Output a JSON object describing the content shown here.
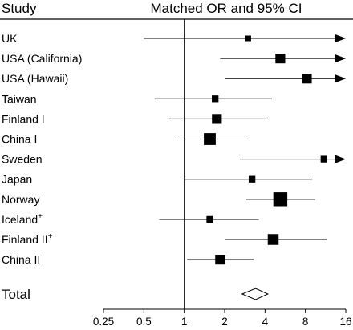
{
  "chart_data": {
    "type": "forest",
    "header": {
      "study": "Study",
      "effect": "Matched OR and 95% CI"
    },
    "x_scale": "log2",
    "xlim": [
      0.25,
      16
    ],
    "reference_line": 1,
    "x_ticks": [
      "0.25",
      "0.5",
      "1",
      "2",
      "4",
      "8",
      "16"
    ],
    "x_tick_values": [
      0.25,
      0.5,
      1,
      2,
      4,
      8,
      16
    ],
    "studies": [
      {
        "label": "UK",
        "sup": "",
        "or": 3.0,
        "lower": 0.5,
        "upper": 16,
        "arrow_right": true,
        "weight": 1
      },
      {
        "label": "USA (California)",
        "sup": "",
        "or": 5.2,
        "lower": 1.85,
        "upper": 16,
        "arrow_right": true,
        "weight": 3
      },
      {
        "label": "USA (Hawaii)",
        "sup": "",
        "or": 8.2,
        "lower": 2.0,
        "upper": 16,
        "arrow_right": true,
        "weight": 3
      },
      {
        "label": "Taiwan",
        "sup": "",
        "or": 1.7,
        "lower": 0.6,
        "upper": 4.5,
        "arrow_right": false,
        "weight": 1.5
      },
      {
        "label": "Finland I",
        "sup": "",
        "or": 1.75,
        "lower": 0.75,
        "upper": 4.2,
        "arrow_right": false,
        "weight": 3
      },
      {
        "label": "China I",
        "sup": "",
        "or": 1.55,
        "lower": 0.85,
        "upper": 3.0,
        "arrow_right": false,
        "weight": 4
      },
      {
        "label": "Sweden",
        "sup": "",
        "or": 11.0,
        "lower": 2.6,
        "upper": 16,
        "arrow_right": true,
        "weight": 1.5
      },
      {
        "label": "Japan",
        "sup": "",
        "or": 3.2,
        "lower": 1.0,
        "upper": 9.0,
        "arrow_right": false,
        "weight": 1.5
      },
      {
        "label": "Norway",
        "sup": "",
        "or": 5.2,
        "lower": 2.9,
        "upper": 9.5,
        "arrow_right": false,
        "weight": 5
      },
      {
        "label": "Iceland",
        "sup": "+",
        "or": 1.55,
        "lower": 0.65,
        "upper": 3.6,
        "arrow_right": false,
        "weight": 1.5
      },
      {
        "label": "Finland II",
        "sup": "+",
        "or": 4.6,
        "lower": 2.0,
        "upper": 11.5,
        "arrow_right": false,
        "weight": 3.5
      },
      {
        "label": "China II",
        "sup": "",
        "or": 1.85,
        "lower": 1.05,
        "upper": 3.3,
        "arrow_right": false,
        "weight": 3
      }
    ],
    "total": {
      "label": "Total",
      "or": 3.4,
      "lower": 2.7,
      "upper": 4.2
    }
  }
}
